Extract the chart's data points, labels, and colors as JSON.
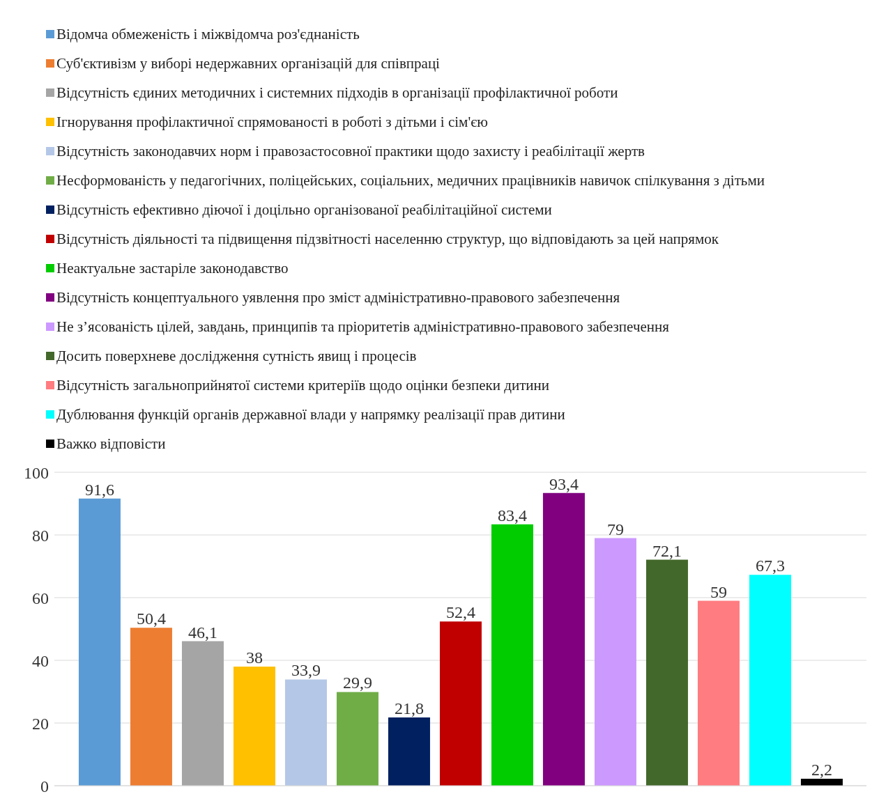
{
  "chart_data": {
    "type": "bar",
    "categories": [
      null
    ],
    "series": [
      {
        "name": "Відомча обмеженість і міжвідомча роз'єднаність",
        "color": "#5b9bd5",
        "values": [
          91.6
        ],
        "value_labels": [
          "91,6"
        ]
      },
      {
        "name": "Суб'єктивізм у виборі недержавних організацій для співпраці",
        "color": "#ed7d31",
        "values": [
          50.4
        ],
        "value_labels": [
          "50,4"
        ]
      },
      {
        "name": "Відсутність єдиних методичних і системних підходів в організації профілактичної роботи",
        "color": "#a5a5a5",
        "values": [
          46.1
        ],
        "value_labels": [
          "46,1"
        ]
      },
      {
        "name": "Ігнорування профілактичної спрямованості в роботі з дітьми і сім'єю",
        "color": "#ffc000",
        "values": [
          38
        ],
        "value_labels": [
          "38"
        ]
      },
      {
        "name": "Відсутність законодавчих норм і правозастосовної практики щодо захисту і реабілітації  жертв",
        "color": "#b4c7e7",
        "values": [
          33.9
        ],
        "value_labels": [
          "33,9"
        ]
      },
      {
        "name": "Несформованість у педагогічних, поліцейських, соціальних, медичних працівників навичок спілкування з дітьми",
        "color": "#70ad47",
        "values": [
          29.9
        ],
        "value_labels": [
          "29,9"
        ]
      },
      {
        "name": "Відсутність ефективно діючої і доцільно організованої реабілітаційної  системи",
        "color": "#002060",
        "values": [
          21.8
        ],
        "value_labels": [
          "21,8"
        ]
      },
      {
        "name": "Відсутність діяльності та підвищення підзвітності населенню структур, що відповідають за цей напрямок",
        "color": "#c00000",
        "values": [
          52.4
        ],
        "value_labels": [
          "52,4"
        ]
      },
      {
        "name": "Неактуальне застаріле законодавство",
        "color": "#00cc00",
        "values": [
          83.4
        ],
        "value_labels": [
          "83,4"
        ]
      },
      {
        "name": "Відсутність концептуального уявлення про зміст адміністративно-правового забезпечення",
        "color": "#800080",
        "values": [
          93.4
        ],
        "value_labels": [
          "93,4"
        ]
      },
      {
        "name": "Не з’ясованість цілей, завдань, принципів та пріоритетів адміністративно-правового забезпечення",
        "color": "#cc99ff",
        "values": [
          79
        ],
        "value_labels": [
          "79"
        ]
      },
      {
        "name": "Досить поверхневе дослідження сутність явищ і процесів",
        "color": "#43682b",
        "values": [
          72.1
        ],
        "value_labels": [
          "72,1"
        ]
      },
      {
        "name": "Відсутність загальноприйнятої системи критеріїв щодо оцінки безпеки дитини",
        "color": "#ff7c80",
        "values": [
          59
        ],
        "value_labels": [
          "59"
        ]
      },
      {
        "name": "Дублювання функцій органів державної влади у напрямку реалізації прав дитини",
        "color": "#00ffff",
        "values": [
          67.3
        ],
        "value_labels": [
          "67,3"
        ]
      },
      {
        "name": "Важко відповісти",
        "color": "#000000",
        "values": [
          2.2
        ],
        "value_labels": [
          "2,2"
        ]
      }
    ],
    "ylim": [
      0,
      100
    ],
    "yticks": [
      0,
      20,
      40,
      60,
      80,
      100
    ],
    "grid": "y",
    "legend": "top left"
  }
}
